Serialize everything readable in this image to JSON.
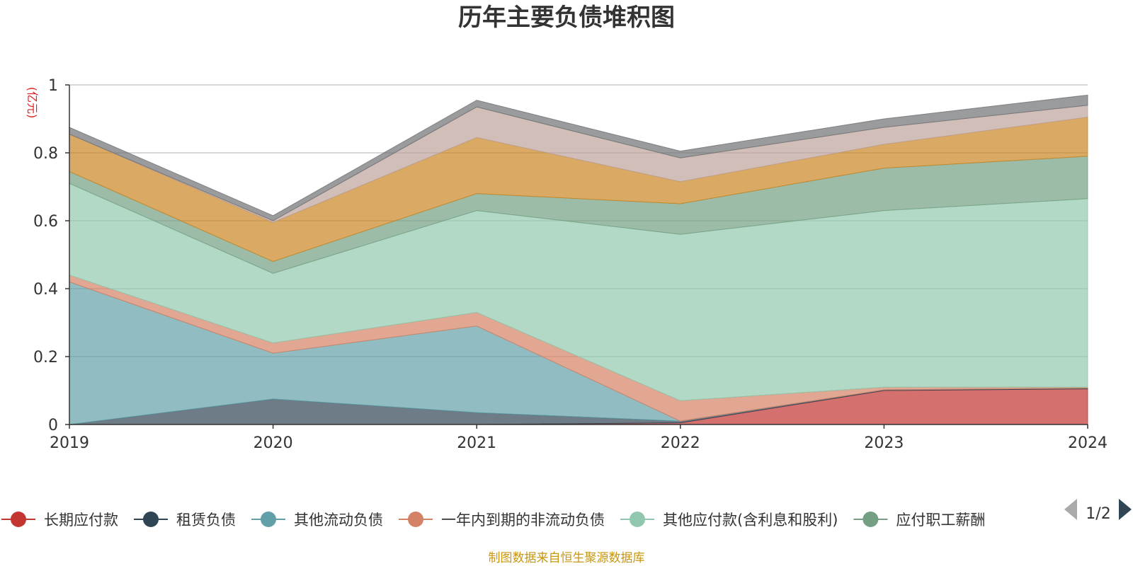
{
  "chart_data": {
    "type": "area",
    "stacked": true,
    "title": "历年主要负债堆积图",
    "unit": "(亿元)",
    "x": [
      "2019",
      "2020",
      "2021",
      "2022",
      "2023",
      "2024"
    ],
    "ylim": [
      0,
      1
    ],
    "yticks": [
      "0",
      "0.2",
      "0.4",
      "0.6",
      "0.8",
      "1"
    ],
    "grid": true,
    "series": [
      {
        "name": "长期应付款",
        "color": "#c23531",
        "values": [
          0,
          0,
          0,
          0.005,
          0.1,
          0.105
        ]
      },
      {
        "name": "租赁负债",
        "color": "#2f4554",
        "values": [
          0,
          0.075,
          0.035,
          0.005,
          0.002,
          0.002
        ]
      },
      {
        "name": "其他流动负债",
        "color": "#61a0a8",
        "values": [
          0.42,
          0.135,
          0.255,
          0,
          0,
          0
        ]
      },
      {
        "name": "一年内到期的非流动负债",
        "color": "#d48265",
        "values": [
          0.02,
          0.03,
          0.04,
          0.06,
          0.008,
          0.003
        ]
      },
      {
        "name": "其他应付款(含利息和股利)",
        "color": "#91c7ae",
        "values": [
          0.27,
          0.205,
          0.3,
          0.49,
          0.52,
          0.555
        ]
      },
      {
        "name": "应付职工薪酬",
        "color": "#749f83",
        "values": [
          0.035,
          0.035,
          0.05,
          0.09,
          0.125,
          0.125
        ]
      },
      {
        "name": "",
        "color": "#ca8622",
        "values": [
          0.11,
          0.115,
          0.165,
          0.065,
          0.07,
          0.115
        ]
      },
      {
        "name": "",
        "color": "#bda29a",
        "values": [
          0,
          0.005,
          0.09,
          0.07,
          0.05,
          0.035
        ]
      },
      {
        "name": "",
        "color": "#6e7074",
        "values": [
          0.02,
          0.015,
          0.02,
          0.02,
          0.025,
          0.03
        ]
      }
    ],
    "legend": {
      "position": "bottom",
      "page": "1/2"
    },
    "source": "制图数据来自恒生聚源数据库"
  }
}
